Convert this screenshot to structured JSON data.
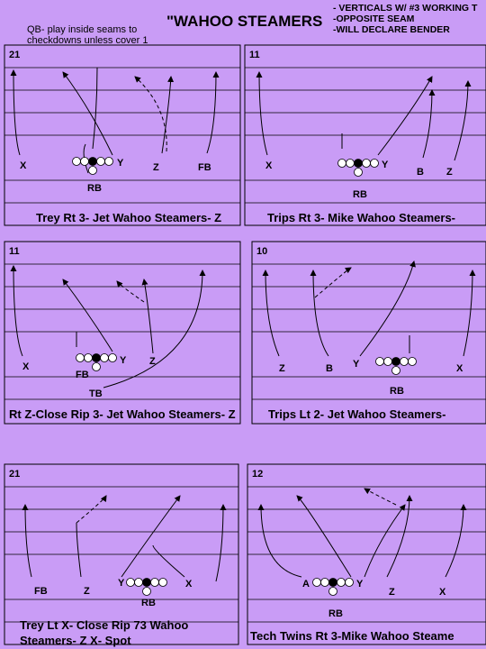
{
  "header": {
    "title": "\"WAHOO STEAMERS",
    "qb_note": [
      "QB- play inside seams to",
      "checkdowns unless cover 1"
    ],
    "notes": [
      "- VERTICALS W/ #3 WORKING T",
      "-OPPOSITE SEAM",
      "-WILL DECLARE BENDER"
    ]
  },
  "panels": [
    {
      "number": "21",
      "caption": [
        "Trey Rt 3- Jet Wahoo Steamers- Z"
      ],
      "players": [
        "X",
        "Y",
        "Z",
        "FB",
        "RB"
      ]
    },
    {
      "number": "11",
      "caption": [
        "Trips Rt 3- Mike Wahoo Steamers-"
      ],
      "players": [
        "X",
        "Y",
        "B",
        "Z",
        "RB"
      ]
    },
    {
      "number": "11",
      "caption": [
        "Rt Z-Close Rip 3- Jet Wahoo Steamers- Z"
      ],
      "players": [
        "X",
        "Y",
        "Z",
        "FB",
        "TB"
      ]
    },
    {
      "number": "10",
      "caption": [
        "Trips Lt 2- Jet Wahoo Steamers-"
      ],
      "players": [
        "Z",
        "B",
        "Y",
        "X",
        "RB"
      ]
    },
    {
      "number": "21",
      "caption": [
        "Trey Lt X- Close Rip 73 Wahoo",
        "Steamers- Z X- Spot"
      ],
      "players": [
        "FB",
        "Z",
        "Y",
        "X",
        "RB"
      ]
    },
    {
      "number": "12",
      "caption": [
        "Tech Twins Rt 3-Mike Wahoo Steame"
      ],
      "players": [
        "A",
        "Y",
        "Z",
        "X",
        "RB"
      ]
    }
  ]
}
